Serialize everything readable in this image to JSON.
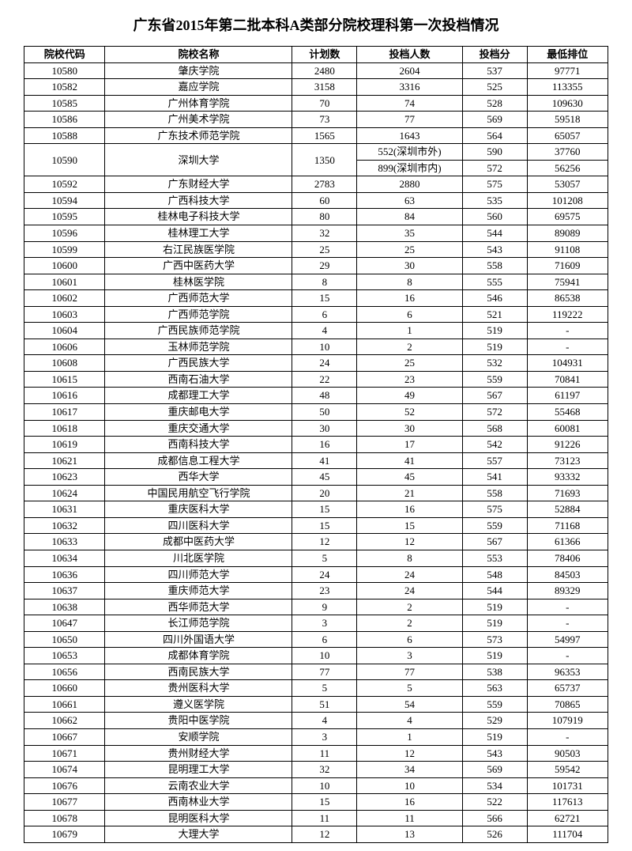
{
  "title": "广东省2015年第二批本科A类部分院校理科第一次投档情况",
  "headers": {
    "code": "院校代码",
    "name": "院校名称",
    "plan": "计划数",
    "cast": "投档人数",
    "score": "投档分",
    "rank": "最低排位"
  },
  "rows": [
    {
      "code": "10580",
      "name": "肇庆学院",
      "plan": "2480",
      "cast": "2604",
      "score": "537",
      "rank": "97771"
    },
    {
      "code": "10582",
      "name": "嘉应学院",
      "plan": "3158",
      "cast": "3316",
      "score": "525",
      "rank": "113355"
    },
    {
      "code": "10585",
      "name": "广州体育学院",
      "plan": "70",
      "cast": "74",
      "score": "528",
      "rank": "109630"
    },
    {
      "code": "10586",
      "name": "广州美术学院",
      "plan": "73",
      "cast": "77",
      "score": "569",
      "rank": "59518"
    },
    {
      "code": "10588",
      "name": "广东技术师范学院",
      "plan": "1565",
      "cast": "1643",
      "score": "564",
      "rank": "65057"
    },
    {
      "code": "10590",
      "name": "深圳大学",
      "plan": "1350",
      "split": [
        {
          "cast": "552(深圳市外)",
          "score": "590",
          "rank": "37760"
        },
        {
          "cast": "899(深圳市内)",
          "score": "572",
          "rank": "56256"
        }
      ]
    },
    {
      "code": "10592",
      "name": "广东财经大学",
      "plan": "2783",
      "cast": "2880",
      "score": "575",
      "rank": "53057"
    },
    {
      "code": "10594",
      "name": "广西科技大学",
      "plan": "60",
      "cast": "63",
      "score": "535",
      "rank": "101208"
    },
    {
      "code": "10595",
      "name": "桂林电子科技大学",
      "plan": "80",
      "cast": "84",
      "score": "560",
      "rank": "69575"
    },
    {
      "code": "10596",
      "name": "桂林理工大学",
      "plan": "32",
      "cast": "35",
      "score": "544",
      "rank": "89089"
    },
    {
      "code": "10599",
      "name": "右江民族医学院",
      "plan": "25",
      "cast": "25",
      "score": "543",
      "rank": "91108"
    },
    {
      "code": "10600",
      "name": "广西中医药大学",
      "plan": "29",
      "cast": "30",
      "score": "558",
      "rank": "71609"
    },
    {
      "code": "10601",
      "name": "桂林医学院",
      "plan": "8",
      "cast": "8",
      "score": "555",
      "rank": "75941"
    },
    {
      "code": "10602",
      "name": "广西师范大学",
      "plan": "15",
      "cast": "16",
      "score": "546",
      "rank": "86538"
    },
    {
      "code": "10603",
      "name": "广西师范学院",
      "plan": "6",
      "cast": "6",
      "score": "521",
      "rank": "119222"
    },
    {
      "code": "10604",
      "name": "广西民族师范学院",
      "plan": "4",
      "cast": "1",
      "score": "519",
      "rank": "-"
    },
    {
      "code": "10606",
      "name": "玉林师范学院",
      "plan": "10",
      "cast": "2",
      "score": "519",
      "rank": "-"
    },
    {
      "code": "10608",
      "name": "广西民族大学",
      "plan": "24",
      "cast": "25",
      "score": "532",
      "rank": "104931"
    },
    {
      "code": "10615",
      "name": "西南石油大学",
      "plan": "22",
      "cast": "23",
      "score": "559",
      "rank": "70841"
    },
    {
      "code": "10616",
      "name": "成都理工大学",
      "plan": "48",
      "cast": "49",
      "score": "567",
      "rank": "61197"
    },
    {
      "code": "10617",
      "name": "重庆邮电大学",
      "plan": "50",
      "cast": "52",
      "score": "572",
      "rank": "55468"
    },
    {
      "code": "10618",
      "name": "重庆交通大学",
      "plan": "30",
      "cast": "30",
      "score": "568",
      "rank": "60081"
    },
    {
      "code": "10619",
      "name": "西南科技大学",
      "plan": "16",
      "cast": "17",
      "score": "542",
      "rank": "91226"
    },
    {
      "code": "10621",
      "name": "成都信息工程大学",
      "plan": "41",
      "cast": "41",
      "score": "557",
      "rank": "73123"
    },
    {
      "code": "10623",
      "name": "西华大学",
      "plan": "45",
      "cast": "45",
      "score": "541",
      "rank": "93332"
    },
    {
      "code": "10624",
      "name": "中国民用航空飞行学院",
      "plan": "20",
      "cast": "21",
      "score": "558",
      "rank": "71693"
    },
    {
      "code": "10631",
      "name": "重庆医科大学",
      "plan": "15",
      "cast": "16",
      "score": "575",
      "rank": "52884"
    },
    {
      "code": "10632",
      "name": "四川医科大学",
      "plan": "15",
      "cast": "15",
      "score": "559",
      "rank": "71168"
    },
    {
      "code": "10633",
      "name": "成都中医药大学",
      "plan": "12",
      "cast": "12",
      "score": "567",
      "rank": "61366"
    },
    {
      "code": "10634",
      "name": "川北医学院",
      "plan": "5",
      "cast": "8",
      "score": "553",
      "rank": "78406"
    },
    {
      "code": "10636",
      "name": "四川师范大学",
      "plan": "24",
      "cast": "24",
      "score": "548",
      "rank": "84503"
    },
    {
      "code": "10637",
      "name": "重庆师范大学",
      "plan": "23",
      "cast": "24",
      "score": "544",
      "rank": "89329"
    },
    {
      "code": "10638",
      "name": "西华师范大学",
      "plan": "9",
      "cast": "2",
      "score": "519",
      "rank": "-"
    },
    {
      "code": "10647",
      "name": "长江师范学院",
      "plan": "3",
      "cast": "2",
      "score": "519",
      "rank": "-"
    },
    {
      "code": "10650",
      "name": "四川外国语大学",
      "plan": "6",
      "cast": "6",
      "score": "573",
      "rank": "54997"
    },
    {
      "code": "10653",
      "name": "成都体育学院",
      "plan": "10",
      "cast": "3",
      "score": "519",
      "rank": "-"
    },
    {
      "code": "10656",
      "name": "西南民族大学",
      "plan": "77",
      "cast": "77",
      "score": "538",
      "rank": "96353"
    },
    {
      "code": "10660",
      "name": "贵州医科大学",
      "plan": "5",
      "cast": "5",
      "score": "563",
      "rank": "65737"
    },
    {
      "code": "10661",
      "name": "遵义医学院",
      "plan": "51",
      "cast": "54",
      "score": "559",
      "rank": "70865"
    },
    {
      "code": "10662",
      "name": "贵阳中医学院",
      "plan": "4",
      "cast": "4",
      "score": "529",
      "rank": "107919"
    },
    {
      "code": "10667",
      "name": "安顺学院",
      "plan": "3",
      "cast": "1",
      "score": "519",
      "rank": "-"
    },
    {
      "code": "10671",
      "name": "贵州财经大学",
      "plan": "11",
      "cast": "12",
      "score": "543",
      "rank": "90503"
    },
    {
      "code": "10674",
      "name": "昆明理工大学",
      "plan": "32",
      "cast": "34",
      "score": "569",
      "rank": "59542"
    },
    {
      "code": "10676",
      "name": "云南农业大学",
      "plan": "10",
      "cast": "10",
      "score": "534",
      "rank": "101731"
    },
    {
      "code": "10677",
      "name": "西南林业大学",
      "plan": "15",
      "cast": "16",
      "score": "522",
      "rank": "117613"
    },
    {
      "code": "10678",
      "name": "昆明医科大学",
      "plan": "11",
      "cast": "11",
      "score": "566",
      "rank": "62721"
    },
    {
      "code": "10679",
      "name": "大理大学",
      "plan": "12",
      "cast": "13",
      "score": "526",
      "rank": "111704"
    }
  ]
}
